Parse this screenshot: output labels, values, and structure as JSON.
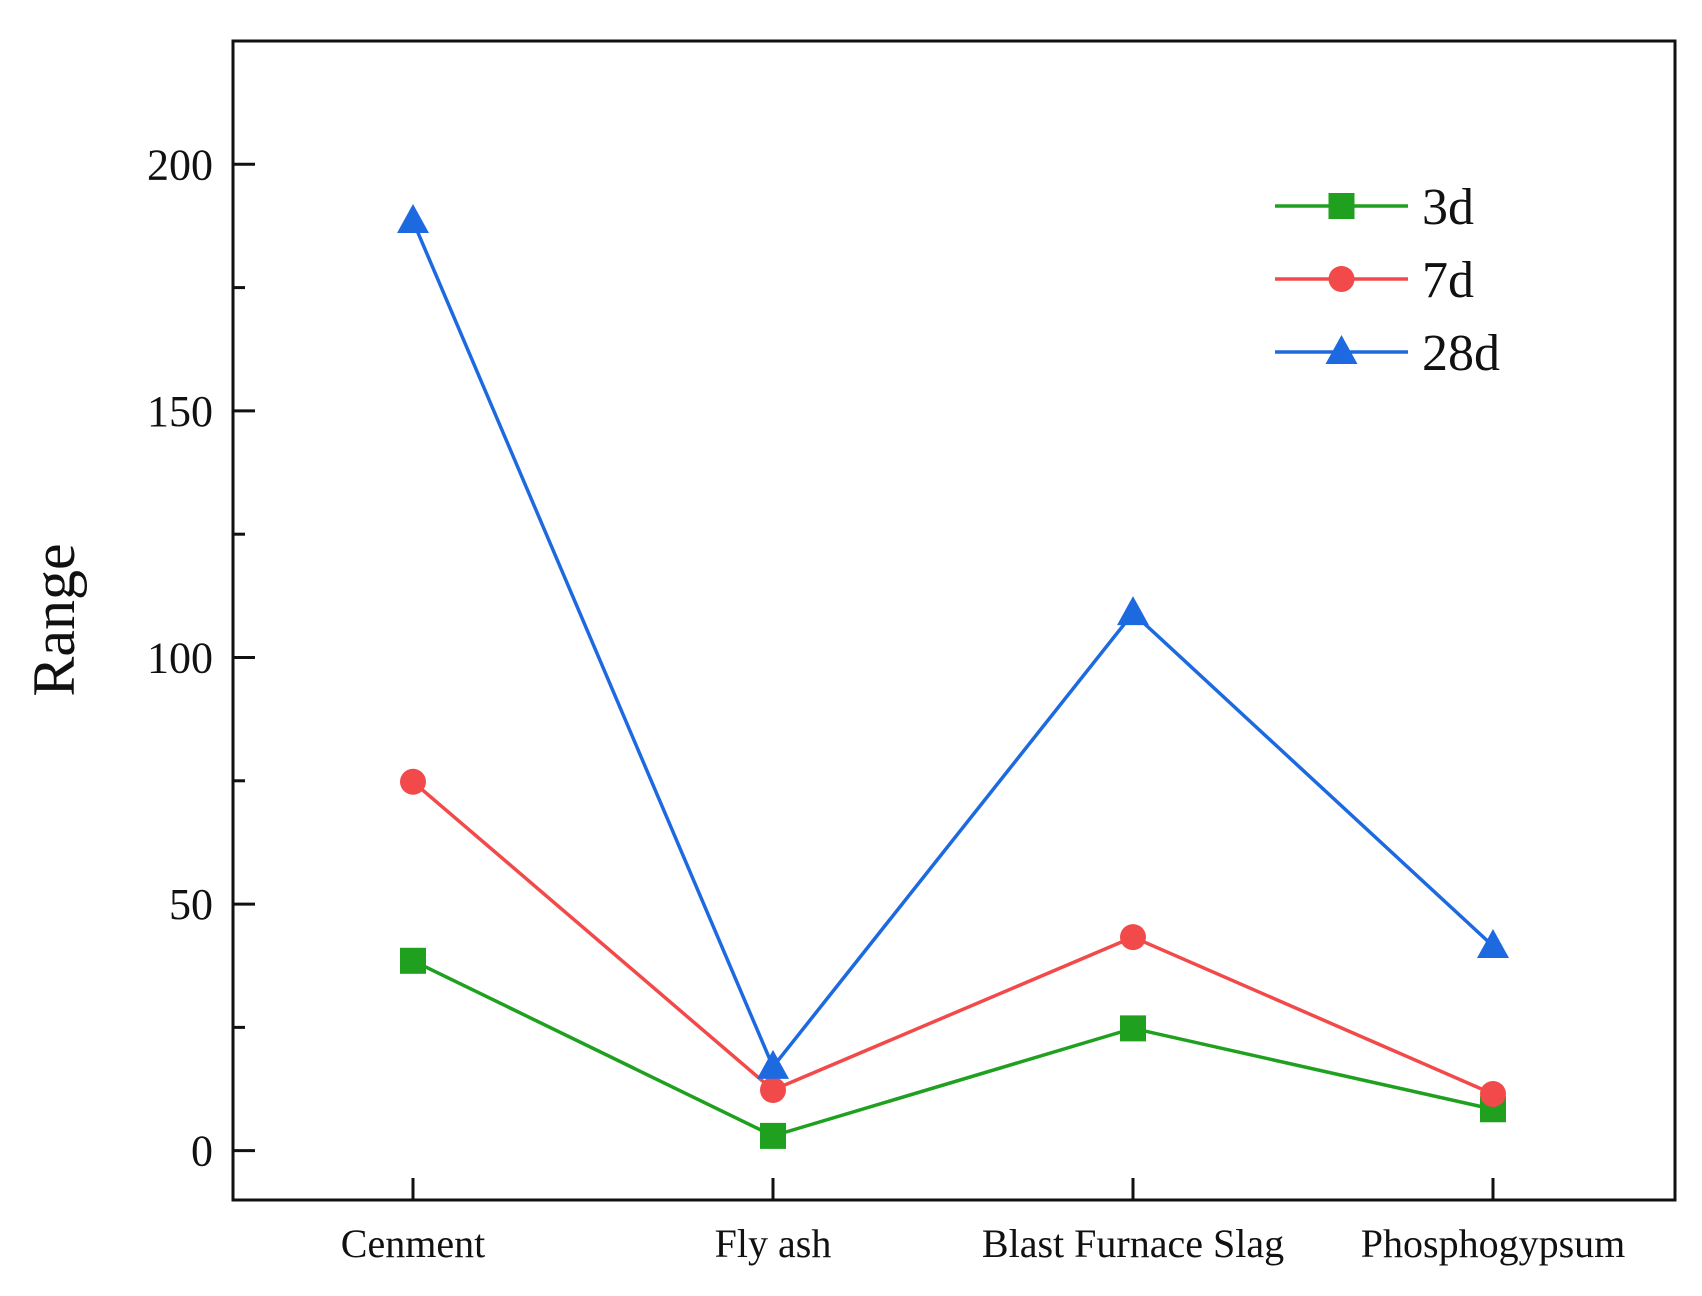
{
  "chart_data": {
    "type": "line",
    "title": "",
    "xlabel": "",
    "ylabel": "Range",
    "categories": [
      "Cenment",
      "Fly ash",
      "Blast Furnace Slag",
      "Phosphogypsum"
    ],
    "ylim": [
      -10,
      225
    ],
    "yticks": [
      0,
      50,
      100,
      150,
      200
    ],
    "ytick_labels": [
      "0",
      "50",
      "100",
      "150",
      "200"
    ],
    "grid": false,
    "legend_position": "top-right",
    "series": [
      {
        "name": "3d",
        "color": "#1fa01f",
        "marker": "square",
        "values": [
          38.5,
          3.0,
          24.8,
          8.4
        ]
      },
      {
        "name": "7d",
        "color": "#f24a4a",
        "marker": "circle",
        "values": [
          74.8,
          12.3,
          43.3,
          11.5
        ]
      },
      {
        "name": "28d",
        "color": "#1d6ae0",
        "marker": "triangle",
        "values": [
          188.5,
          17.0,
          109.0,
          41.5
        ]
      }
    ]
  }
}
